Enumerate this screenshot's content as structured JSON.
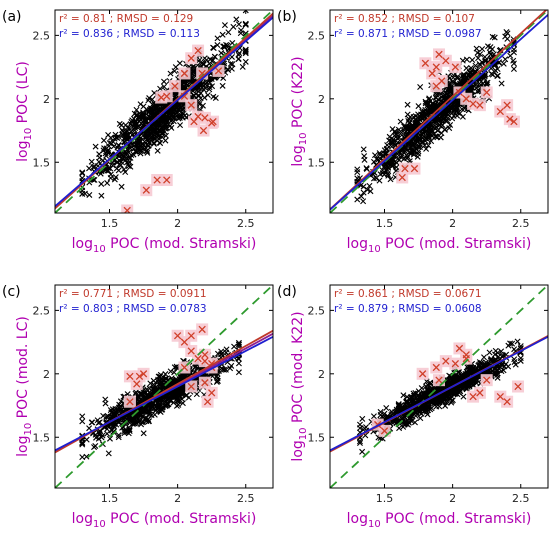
{
  "colors": {
    "all": "#000000",
    "excluded": "#d0402a",
    "excluded_halo": "#f6c9d2",
    "fit_red": "#c0392b",
    "fit_blue": "#1f1fd0",
    "fit_purple": "#8e1f8e",
    "one_to_one": "#2e9a2e",
    "axis_label": "#b000b0"
  },
  "chart_data": [
    {
      "panel": "(a)",
      "type": "scatter",
      "xlabel_main": "log",
      "xlabel_sub": "10",
      "xlabel_rest": " POC (mod. Stramski)",
      "ylabel_main": "log",
      "ylabel_sub": "10",
      "ylabel_rest": " POC (LC)",
      "xlim": [
        1.1,
        2.7
      ],
      "ylim": [
        1.1,
        2.7
      ],
      "xticks": [
        "1.5",
        "2",
        "2.5"
      ],
      "yticks": [
        "1.5",
        "2",
        "2.5"
      ],
      "stats": [
        {
          "color": "red",
          "text": "r² = 0.81 ; RMSD = 0.129"
        },
        {
          "color": "blue",
          "text": "r² = 0.836 ; RMSD = 0.113"
        }
      ],
      "fit_red": {
        "slope": 0.96,
        "intercept": 0.08
      },
      "fit_blue": {
        "slope": 0.93,
        "intercept": 0.13
      },
      "fit_purple": {
        "slope": 0.945,
        "intercept": 0.105
      },
      "one_to_one": true,
      "cloud": {
        "n": 900,
        "x_range": [
          1.3,
          2.5
        ],
        "slope": 0.93,
        "intercept": 0.13,
        "spread": 0.1
      },
      "outliers": [
        [
          1.88,
          2.01
        ],
        [
          1.92,
          2.02
        ],
        [
          1.98,
          2.1
        ],
        [
          2.05,
          2.02
        ],
        [
          2.1,
          1.95
        ],
        [
          2.15,
          1.86
        ],
        [
          2.19,
          1.75
        ],
        [
          2.25,
          1.81
        ],
        [
          2.05,
          2.2
        ],
        [
          2.1,
          2.32
        ],
        [
          2.15,
          2.38
        ],
        [
          2.3,
          2.22
        ],
        [
          2.2,
          1.85
        ],
        [
          1.77,
          1.28
        ],
        [
          1.92,
          1.36
        ],
        [
          1.63,
          1.12
        ],
        [
          1.85,
          1.36
        ],
        [
          2.26,
          1.82
        ],
        [
          2.12,
          1.82
        ],
        [
          2.18,
          2.2
        ]
      ]
    },
    {
      "panel": "(b)",
      "type": "scatter",
      "xlabel_main": "log",
      "xlabel_sub": "10",
      "xlabel_rest": " POC (mod. Stramski)",
      "ylabel_main": "log",
      "ylabel_sub": "10",
      "ylabel_rest": " POC (K22)",
      "xlim": [
        1.1,
        2.7
      ],
      "ylim": [
        1.1,
        2.7
      ],
      "xticks": [
        "1.5",
        "2",
        "2.5"
      ],
      "yticks": [
        "1.5",
        "2",
        "2.5"
      ],
      "stats": [
        {
          "color": "red",
          "text": "r² = 0.852 ; RMSD = 0.107"
        },
        {
          "color": "blue",
          "text": "r² = 0.871 ; RMSD = 0.0987"
        }
      ],
      "fit_red": {
        "slope": 0.99,
        "intercept": 0.04
      },
      "fit_blue": {
        "slope": 0.96,
        "intercept": 0.07
      },
      "fit_purple": null,
      "one_to_one": true,
      "cloud": {
        "n": 900,
        "x_range": [
          1.3,
          2.45
        ],
        "slope": 0.96,
        "intercept": 0.07,
        "spread": 0.09
      },
      "outliers": [
        [
          1.8,
          2.28
        ],
        [
          1.85,
          2.2
        ],
        [
          1.9,
          2.35
        ],
        [
          1.95,
          2.3
        ],
        [
          1.88,
          2.1
        ],
        [
          1.92,
          2.14
        ],
        [
          2.02,
          2.25
        ],
        [
          2.05,
          2.05
        ],
        [
          2.1,
          2.0
        ],
        [
          2.15,
          1.96
        ],
        [
          2.35,
          1.9
        ],
        [
          2.42,
          1.84
        ],
        [
          2.45,
          1.82
        ],
        [
          2.2,
          1.95
        ],
        [
          1.63,
          1.38
        ],
        [
          1.65,
          1.45
        ],
        [
          1.88,
          2.25
        ],
        [
          2.25,
          2.05
        ],
        [
          2.4,
          1.95
        ],
        [
          1.72,
          1.45
        ]
      ]
    },
    {
      "panel": "(c)",
      "type": "scatter",
      "xlabel_main": "log",
      "xlabel_sub": "10",
      "xlabel_rest": " POC (mod. Stramski)",
      "ylabel_main": "log",
      "ylabel_sub": "10",
      "ylabel_rest": " POC (mod. LC)",
      "xlim": [
        1.1,
        2.7
      ],
      "ylim": [
        1.1,
        2.7
      ],
      "xticks": [
        "1.5",
        "2",
        "2.5"
      ],
      "yticks": [
        "1.5",
        "2",
        "2.5"
      ],
      "stats": [
        {
          "color": "red",
          "text": "r² = 0.771 ; RMSD = 0.0911"
        },
        {
          "color": "blue",
          "text": "r² = 0.803 ; RMSD = 0.0783"
        }
      ],
      "fit_red": {
        "slope": 0.6,
        "intercept": 0.72
      },
      "fit_blue": {
        "slope": 0.56,
        "intercept": 0.78
      },
      "fit_purple": {
        "slope": 0.58,
        "intercept": 0.75
      },
      "one_to_one": true,
      "cloud": {
        "n": 800,
        "x_range": [
          1.3,
          2.45
        ],
        "slope": 0.56,
        "intercept": 0.78,
        "spread": 0.07
      },
      "outliers": [
        [
          2.0,
          2.3
        ],
        [
          2.05,
          2.25
        ],
        [
          2.1,
          2.18
        ],
        [
          2.15,
          2.12
        ],
        [
          2.2,
          2.1
        ],
        [
          2.25,
          2.05
        ],
        [
          2.05,
          2.05
        ],
        [
          2.2,
          1.93
        ],
        [
          2.25,
          1.85
        ],
        [
          2.22,
          1.78
        ],
        [
          1.65,
          1.98
        ],
        [
          1.7,
          1.92
        ],
        [
          1.75,
          2.0
        ],
        [
          2.1,
          2.3
        ],
        [
          1.72,
          1.98
        ],
        [
          2.18,
          2.35
        ],
        [
          2.1,
          1.9
        ],
        [
          2.25,
          2.08
        ],
        [
          2.2,
          2.15
        ],
        [
          1.65,
          1.78
        ]
      ]
    },
    {
      "panel": "(d)",
      "type": "scatter",
      "xlabel_main": "log",
      "xlabel_sub": "10",
      "xlabel_rest": " POC (mod. Stramski)",
      "ylabel_main": "log",
      "ylabel_sub": "10",
      "ylabel_rest": " POC (mod. K22)",
      "xlim": [
        1.1,
        2.7
      ],
      "ylim": [
        1.1,
        2.7
      ],
      "xticks": [
        "1.5",
        "2",
        "2.5"
      ],
      "yticks": [
        "1.5",
        "2",
        "2.5"
      ],
      "stats": [
        {
          "color": "red",
          "text": "r² = 0.861 ; RMSD = 0.0671"
        },
        {
          "color": "blue",
          "text": "r² = 0.879 ; RMSD = 0.0608"
        }
      ],
      "fit_red": {
        "slope": 0.57,
        "intercept": 0.76
      },
      "fit_blue": {
        "slope": 0.56,
        "intercept": 0.78
      },
      "fit_purple": {
        "slope": 0.565,
        "intercept": 0.77
      },
      "one_to_one": true,
      "cloud": {
        "n": 900,
        "x_range": [
          1.32,
          2.5
        ],
        "slope": 0.56,
        "intercept": 0.78,
        "spread": 0.05
      },
      "outliers": [
        [
          1.78,
          2.0
        ],
        [
          1.88,
          2.05
        ],
        [
          1.95,
          2.1
        ],
        [
          2.02,
          2.08
        ],
        [
          2.1,
          2.12
        ],
        [
          2.15,
          1.82
        ],
        [
          2.2,
          1.85
        ],
        [
          2.35,
          1.82
        ],
        [
          2.4,
          1.78
        ],
        [
          2.48,
          1.9
        ],
        [
          1.5,
          1.55
        ],
        [
          1.45,
          1.6
        ],
        [
          2.05,
          2.2
        ],
        [
          2.1,
          2.15
        ],
        [
          2.25,
          1.95
        ],
        [
          1.9,
          1.95
        ]
      ]
    }
  ]
}
